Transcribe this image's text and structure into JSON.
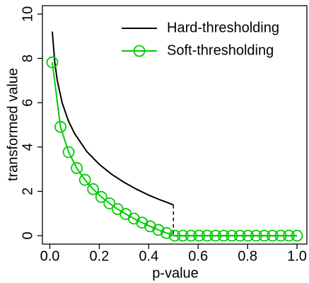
{
  "chart_data": {
    "type": "line",
    "xlabel": "p-value",
    "ylabel": "transformed value",
    "xlim": [
      -0.03,
      1.04
    ],
    "xticks": [
      {
        "value": 0,
        "label": "0.0"
      },
      0.2,
      0.4,
      0.6,
      0.8,
      {
        "value": 1,
        "label": "1.0"
      }
    ],
    "ylim": [
      -0.38,
      10.38
    ],
    "yticks": [
      0,
      2,
      4,
      6,
      8,
      10
    ],
    "legend": "top-right",
    "series": [
      {
        "name": "Hard-thresholding",
        "color": "#000000",
        "marker": "none",
        "x": [
          0.01,
          0.02,
          0.03,
          0.05,
          0.075,
          0.1,
          0.15,
          0.2,
          0.25,
          0.3,
          0.35,
          0.4,
          0.45,
          0.5,
          0.5,
          0.5,
          1.0
        ],
        "values": [
          9.21,
          7.82,
          7.01,
          5.99,
          5.18,
          4.61,
          3.79,
          3.22,
          2.77,
          2.41,
          2.1,
          1.83,
          1.6,
          1.39,
          null,
          0,
          0
        ]
      },
      {
        "name": "Soft-thresholding",
        "color": "#00cc00",
        "marker": "circle",
        "x": [
          0.01,
          0.043,
          0.076,
          0.109,
          0.142,
          0.175,
          0.208,
          0.241,
          0.274,
          0.307,
          0.34,
          0.373,
          0.406,
          0.439,
          0.472,
          0.505,
          0.538,
          0.571,
          0.604,
          0.637,
          0.67,
          0.703,
          0.736,
          0.769,
          0.802,
          0.835,
          0.868,
          0.901,
          0.934,
          0.967,
          1.0
        ],
        "values": [
          7.82,
          4.91,
          3.77,
          3.05,
          2.52,
          2.1,
          1.75,
          1.46,
          1.2,
          0.98,
          0.77,
          0.59,
          0.42,
          0.26,
          0.12,
          0,
          0,
          0,
          0,
          0,
          0,
          0,
          0,
          0,
          0,
          0,
          0,
          0,
          0,
          0,
          0
        ]
      }
    ]
  }
}
